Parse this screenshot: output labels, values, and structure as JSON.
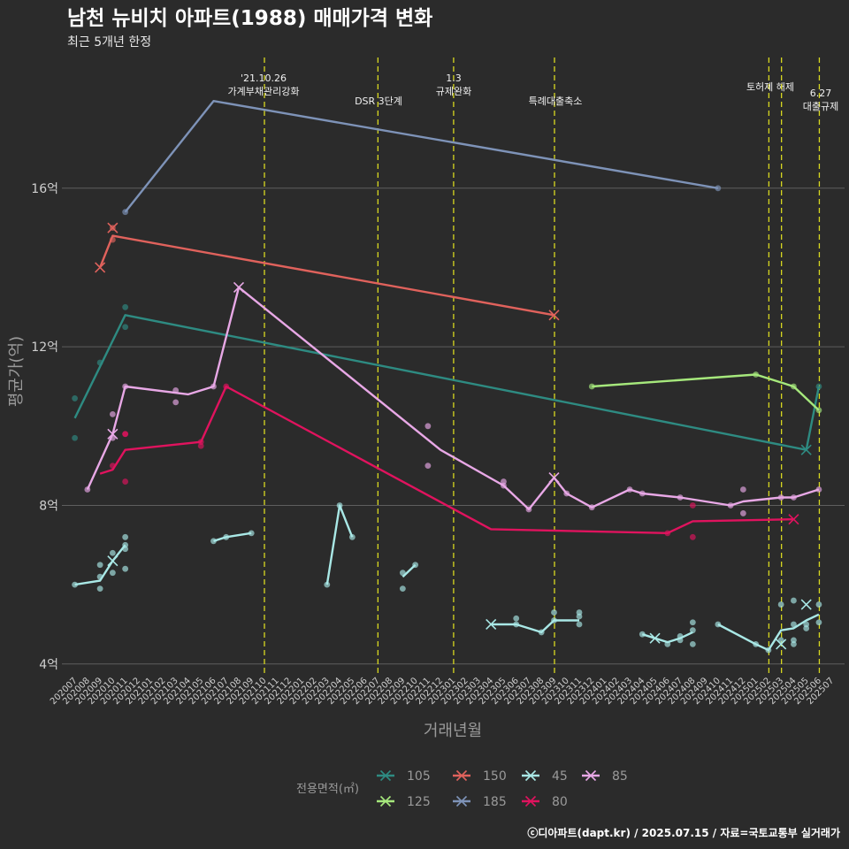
{
  "chart_data": {
    "type": "line",
    "title": "남천 뉴비치 아파트(1988) 매매가격 변화",
    "subtitle": "최근 5개년 한정",
    "xlabel": "거래년월",
    "ylabel": "평균가(억)",
    "caption": "ⓒ디아파트(dapt.kr) / 2025.07.15 / 자료=국토교통부 실거래가",
    "legend_title": "전용면적(㎡)",
    "yticks": [
      {
        "value": 4,
        "label": "4억"
      },
      {
        "value": 8,
        "label": "8억"
      },
      {
        "value": 12,
        "label": "12억"
      },
      {
        "value": 16,
        "label": "16억"
      }
    ],
    "ylim": [
      3.6,
      18.6
    ],
    "months": [
      "202007",
      "202008",
      "202009",
      "202010",
      "202011",
      "202012",
      "202101",
      "202102",
      "202103",
      "202104",
      "202105",
      "202106",
      "202107",
      "202108",
      "202109",
      "202110",
      "202111",
      "202112",
      "202201",
      "202202",
      "202203",
      "202204",
      "202205",
      "202206",
      "202207",
      "202208",
      "202209",
      "202210",
      "202211",
      "202212",
      "202301",
      "202302",
      "202303",
      "202304",
      "202305",
      "202306",
      "202307",
      "202308",
      "202309",
      "202310",
      "202311",
      "202312",
      "202401",
      "202402",
      "202403",
      "202404",
      "202405",
      "202406",
      "202407",
      "202408",
      "202409",
      "202410",
      "202411",
      "202412",
      "202501",
      "202502",
      "202503",
      "202504",
      "202505",
      "202506",
      "202507"
    ],
    "events": [
      {
        "month": "202110",
        "offset": 0,
        "label": "'21.10.26\n가계부채관리강화"
      },
      {
        "month": "202207",
        "offset": 0,
        "label": "DSR 3단계"
      },
      {
        "month": "202301",
        "offset": 0,
        "label": "1.3\n규제완화"
      },
      {
        "month": "202309",
        "offset": 0,
        "label": "특례대출축소"
      },
      {
        "month": "202502",
        "offset": 0,
        "label": "토허제 해제"
      },
      {
        "month": "202503",
        "offset": 0,
        "label": ""
      },
      {
        "month": "202506",
        "offset": 0,
        "label": "6.27\n대출규제"
      }
    ],
    "series": [
      {
        "name": "105",
        "color": "#2e8b82",
        "line": [
          [
            "202007",
            10.2
          ],
          [
            "202011",
            12.8
          ],
          [
            "202505",
            9.4
          ],
          [
            "202506",
            11.0
          ]
        ],
        "points": [
          [
            "202007",
            10.7
          ],
          [
            "202007",
            9.7
          ],
          [
            "202009",
            11.6
          ],
          [
            "202011",
            13.0
          ],
          [
            "202011",
            12.5
          ],
          [
            "202506",
            11.0
          ]
        ],
        "crosses": [
          [
            "202505",
            9.4
          ]
        ]
      },
      {
        "name": "125",
        "color": "#a6e87c",
        "line": [
          [
            "202312",
            11.0
          ],
          [
            "202501",
            11.3
          ],
          [
            "202504",
            11.0
          ],
          [
            "202506",
            10.4
          ]
        ],
        "points": [
          [
            "202312",
            11.0
          ],
          [
            "202501",
            11.3
          ],
          [
            "202504",
            11.0
          ],
          [
            "202506",
            10.4
          ]
        ],
        "crosses": []
      },
      {
        "name": "150",
        "color": "#e0625c",
        "line": [
          [
            "202009",
            14.0
          ],
          [
            "202010",
            14.8
          ],
          [
            "202309",
            12.8
          ]
        ],
        "points": [
          [
            "202010",
            14.7
          ],
          [
            "202010",
            15.0
          ]
        ],
        "crosses": [
          [
            "202009",
            14.0
          ],
          [
            "202010",
            15.0
          ],
          [
            "202309",
            12.8
          ]
        ]
      },
      {
        "name": "185",
        "color": "#7e93b8",
        "line": [
          [
            "202011",
            15.4
          ],
          [
            "202106",
            18.2
          ],
          [
            "202410",
            16.0
          ]
        ],
        "points": [
          [
            "202011",
            15.4
          ],
          [
            "202410",
            16.0
          ]
        ],
        "crosses": []
      },
      {
        "name": "80",
        "color": "#e0135e",
        "line": [
          [
            "202009",
            8.8
          ],
          [
            "202010",
            8.9
          ],
          [
            "202011",
            9.4
          ],
          [
            "202105",
            9.6
          ],
          [
            "202107",
            11.0
          ],
          [
            "202304",
            7.4
          ],
          [
            "202406",
            7.3
          ],
          [
            "202408",
            7.6
          ],
          [
            "202504",
            7.65
          ]
        ],
        "points": [
          [
            "202010",
            9.0
          ],
          [
            "202011",
            9.8
          ],
          [
            "202011",
            9.8
          ],
          [
            "202011",
            8.6
          ],
          [
            "202105",
            9.6
          ],
          [
            "202105",
            9.5
          ],
          [
            "202107",
            11.0
          ],
          [
            "202406",
            7.3
          ],
          [
            "202408",
            8.0
          ],
          [
            "202408",
            7.2
          ]
        ],
        "crosses": [
          [
            "202504",
            7.65
          ]
        ]
      },
      {
        "name": "45",
        "color": "#a9e8e6",
        "line_segments": [
          [
            [
              "202007",
              6.0
            ],
            [
              "202009",
              6.1
            ],
            [
              "202010",
              6.6
            ],
            [
              "202011",
              7.0
            ]
          ],
          [
            [
              "202106",
              7.1
            ],
            [
              "202107",
              7.2
            ],
            [
              "202109",
              7.3
            ]
          ],
          [
            [
              "202203",
              6.0
            ],
            [
              "202204",
              8.0
            ],
            [
              "202205",
              7.2
            ]
          ],
          [
            [
              "202209",
              6.2
            ],
            [
              "202210",
              6.5
            ]
          ],
          [
            [
              "202304",
              5.0
            ],
            [
              "202306",
              5.0
            ],
            [
              "202308",
              4.8
            ],
            [
              "202309",
              5.1
            ],
            [
              "202310",
              5.1
            ],
            [
              "202311",
              5.1
            ]
          ],
          [
            [
              "202404",
              4.75
            ],
            [
              "202405",
              4.65
            ],
            [
              "202406",
              4.55
            ],
            [
              "202407",
              4.65
            ],
            [
              "202408",
              4.8
            ]
          ],
          [
            [
              "202410",
              5.0
            ],
            [
              "202501",
              4.5
            ],
            [
              "202502",
              4.35
            ],
            [
              "202503",
              4.85
            ],
            [
              "202504",
              4.9
            ],
            [
              "202505",
              5.1
            ],
            [
              "202506",
              5.25
            ]
          ]
        ],
        "points": [
          [
            "202007",
            6.0
          ],
          [
            "202009",
            6.2
          ],
          [
            "202009",
            6.5
          ],
          [
            "202009",
            5.9
          ],
          [
            "202010",
            6.8
          ],
          [
            "202010",
            6.3
          ],
          [
            "202011",
            7.2
          ],
          [
            "202011",
            7.0
          ],
          [
            "202011",
            6.9
          ],
          [
            "202011",
            6.4
          ],
          [
            "202106",
            7.1
          ],
          [
            "202107",
            7.2
          ],
          [
            "202109",
            7.3
          ],
          [
            "202203",
            6.0
          ],
          [
            "202204",
            8.0
          ],
          [
            "202205",
            7.2
          ],
          [
            "202209",
            6.3
          ],
          [
            "202209",
            5.9
          ],
          [
            "202210",
            6.5
          ],
          [
            "202306",
            5.0
          ],
          [
            "202306",
            5.15
          ],
          [
            "202308",
            4.8
          ],
          [
            "202309",
            5.3
          ],
          [
            "202309",
            5.1
          ],
          [
            "202311",
            5.3
          ],
          [
            "202311",
            5.2
          ],
          [
            "202311",
            5.0
          ],
          [
            "202404",
            4.75
          ],
          [
            "202406",
            4.5
          ],
          [
            "202407",
            4.7
          ],
          [
            "202407",
            4.6
          ],
          [
            "202408",
            4.85
          ],
          [
            "202408",
            4.5
          ],
          [
            "202408",
            5.05
          ],
          [
            "202410",
            5.0
          ],
          [
            "202501",
            4.5
          ],
          [
            "202502",
            4.35
          ],
          [
            "202503",
            5.5
          ],
          [
            "202503",
            4.6
          ],
          [
            "202504",
            5.6
          ],
          [
            "202504",
            4.6
          ],
          [
            "202504",
            4.5
          ],
          [
            "202504",
            5.0
          ],
          [
            "202505",
            5.0
          ],
          [
            "202505",
            4.9
          ],
          [
            "202506",
            5.5
          ],
          [
            "202506",
            5.05
          ]
        ],
        "crosses": [
          [
            "202010",
            6.6
          ],
          [
            "202304",
            5.0
          ],
          [
            "202405",
            4.65
          ],
          [
            "202503",
            4.5
          ],
          [
            "202505",
            5.5
          ]
        ]
      },
      {
        "name": "85",
        "color": "#e8a8e6",
        "line": [
          [
            "202008",
            8.4
          ],
          [
            "202010",
            9.8
          ],
          [
            "202011",
            11.0
          ],
          [
            "202104",
            10.8
          ],
          [
            "202106",
            11.0
          ],
          [
            "202108",
            13.5
          ],
          [
            "202212",
            9.4
          ],
          [
            "202305",
            8.5
          ],
          [
            "202307",
            7.9
          ],
          [
            "202309",
            8.7
          ],
          [
            "202310",
            8.3
          ],
          [
            "202312",
            7.95
          ],
          [
            "202403",
            8.4
          ],
          [
            "202404",
            8.3
          ],
          [
            "202407",
            8.2
          ],
          [
            "202411",
            8.0
          ],
          [
            "202412",
            8.1
          ],
          [
            "202503",
            8.2
          ],
          [
            "202504",
            8.2
          ],
          [
            "202506",
            8.4
          ]
        ],
        "points": [
          [
            "202008",
            8.4
          ],
          [
            "202010",
            10.3
          ],
          [
            "202010",
            9.7
          ],
          [
            "202011",
            11.0
          ],
          [
            "202103",
            10.9
          ],
          [
            "202103",
            10.6
          ],
          [
            "202106",
            11.0
          ],
          [
            "202211",
            9.0
          ],
          [
            "202211",
            10.0
          ],
          [
            "202305",
            8.6
          ],
          [
            "202305",
            8.5
          ],
          [
            "202307",
            7.9
          ],
          [
            "202310",
            8.3
          ],
          [
            "202312",
            7.95
          ],
          [
            "202403",
            8.4
          ],
          [
            "202404",
            8.3
          ],
          [
            "202407",
            8.2
          ],
          [
            "202411",
            8.0
          ],
          [
            "202412",
            8.4
          ],
          [
            "202412",
            7.8
          ],
          [
            "202503",
            8.2
          ],
          [
            "202504",
            8.2
          ],
          [
            "202506",
            8.4
          ]
        ],
        "crosses": [
          [
            "202010",
            9.8
          ],
          [
            "202108",
            13.5
          ],
          [
            "202309",
            8.7
          ]
        ]
      }
    ],
    "legend_order": [
      [
        "105",
        "150",
        "45",
        "85"
      ],
      [
        "125",
        "185",
        "80"
      ]
    ]
  }
}
